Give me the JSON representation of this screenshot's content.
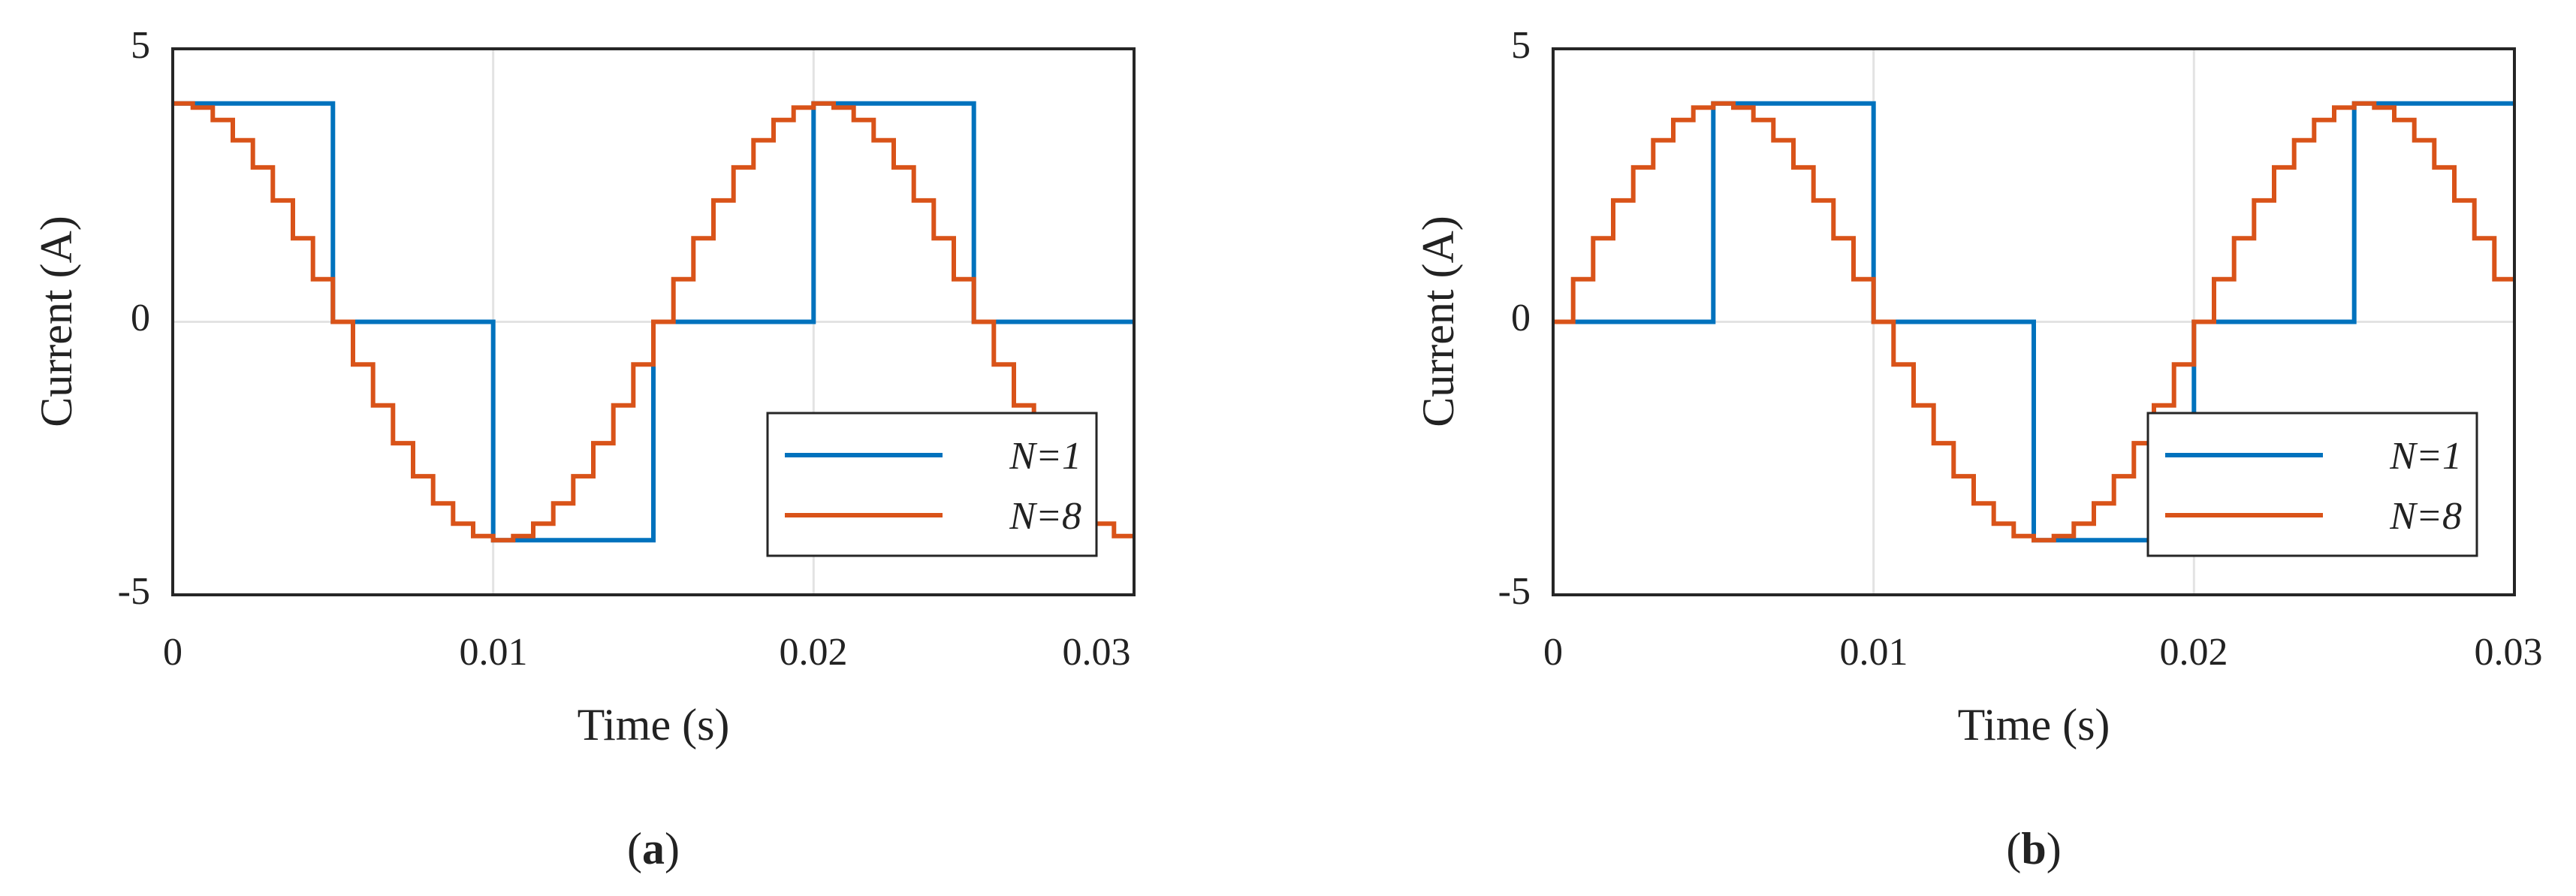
{
  "figure": {
    "panel_labels": [
      "(a)",
      "(b)"
    ]
  },
  "chart_data": [
    {
      "type": "line",
      "panel": "a",
      "title": "",
      "xlabel": "Time (s)",
      "ylabel": "Current (A)",
      "xlim": [
        0,
        0.03
      ],
      "ylim": [
        -5,
        5
      ],
      "xticks": [
        0,
        0.01,
        0.02,
        0.03
      ],
      "xtick_labels": [
        "0",
        "0.01",
        "0.02",
        "0.03"
      ],
      "yticks": [
        -5,
        0,
        5
      ],
      "ytick_labels": [
        "-5",
        "0",
        "5"
      ],
      "grid": true,
      "legend_position": "lower-right",
      "phase": "cosine",
      "amplitude": 4,
      "frequency_hz": 50,
      "series": [
        {
          "name": "N=1",
          "color": "#0072BD",
          "steps_per_period": 4
        },
        {
          "name": "N=8",
          "color": "#D95319",
          "steps_per_period": 32
        }
      ]
    },
    {
      "type": "line",
      "panel": "b",
      "title": "",
      "xlabel": "Time (s)",
      "ylabel": "Current (A)",
      "xlim": [
        0,
        0.03
      ],
      "ylim": [
        -5,
        5
      ],
      "xticks": [
        0,
        0.01,
        0.02,
        0.03
      ],
      "xtick_labels": [
        "0",
        "0.01",
        "0.02",
        "0.03"
      ],
      "yticks": [
        -5,
        0,
        5
      ],
      "ytick_labels": [
        "-5",
        "0",
        "5"
      ],
      "grid": true,
      "legend_position": "lower-right",
      "phase": "sine",
      "amplitude": 4,
      "frequency_hz": 50,
      "series": [
        {
          "name": "N=1",
          "color": "#0072BD",
          "steps_per_period": 4
        },
        {
          "name": "N=8",
          "color": "#D95319",
          "steps_per_period": 32
        }
      ]
    }
  ]
}
